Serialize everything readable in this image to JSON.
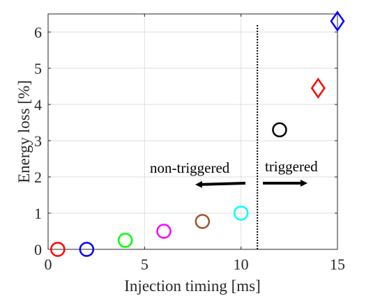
{
  "chart_data": {
    "type": "scatter",
    "xlabel": "Injection timing [ms]",
    "ylabel": "Energy loss [%]",
    "xlim": [
      0,
      15
    ],
    "ylim": [
      0,
      6.5
    ],
    "xticks": [
      0,
      5,
      10,
      15
    ],
    "yticks": [
      0,
      1,
      2,
      3,
      4,
      5,
      6
    ],
    "grid": true,
    "points": [
      {
        "x": 0.5,
        "y": 0.0,
        "marker": "circle",
        "color": "#ff0000"
      },
      {
        "x": 2.0,
        "y": 0.0,
        "marker": "circle",
        "color": "#0000ff"
      },
      {
        "x": 4.0,
        "y": 0.25,
        "marker": "circle",
        "color": "#00ff00"
      },
      {
        "x": 6.0,
        "y": 0.5,
        "marker": "circle",
        "color": "#ff00ff"
      },
      {
        "x": 8.0,
        "y": 0.77,
        "marker": "circle",
        "color": "#a0522d"
      },
      {
        "x": 10.0,
        "y": 1.0,
        "marker": "circle",
        "color": "#00ffff"
      },
      {
        "x": 12.0,
        "y": 3.3,
        "marker": "circle",
        "color": "#000000"
      },
      {
        "x": 14.0,
        "y": 4.45,
        "marker": "diamond",
        "color": "#ff0000"
      },
      {
        "x": 15.0,
        "y": 6.3,
        "marker": "diamond",
        "color": "#0000ff"
      }
    ],
    "threshold_x": 10.85,
    "annotations": {
      "left_label": "non-triggered",
      "right_label": "triggered"
    }
  }
}
